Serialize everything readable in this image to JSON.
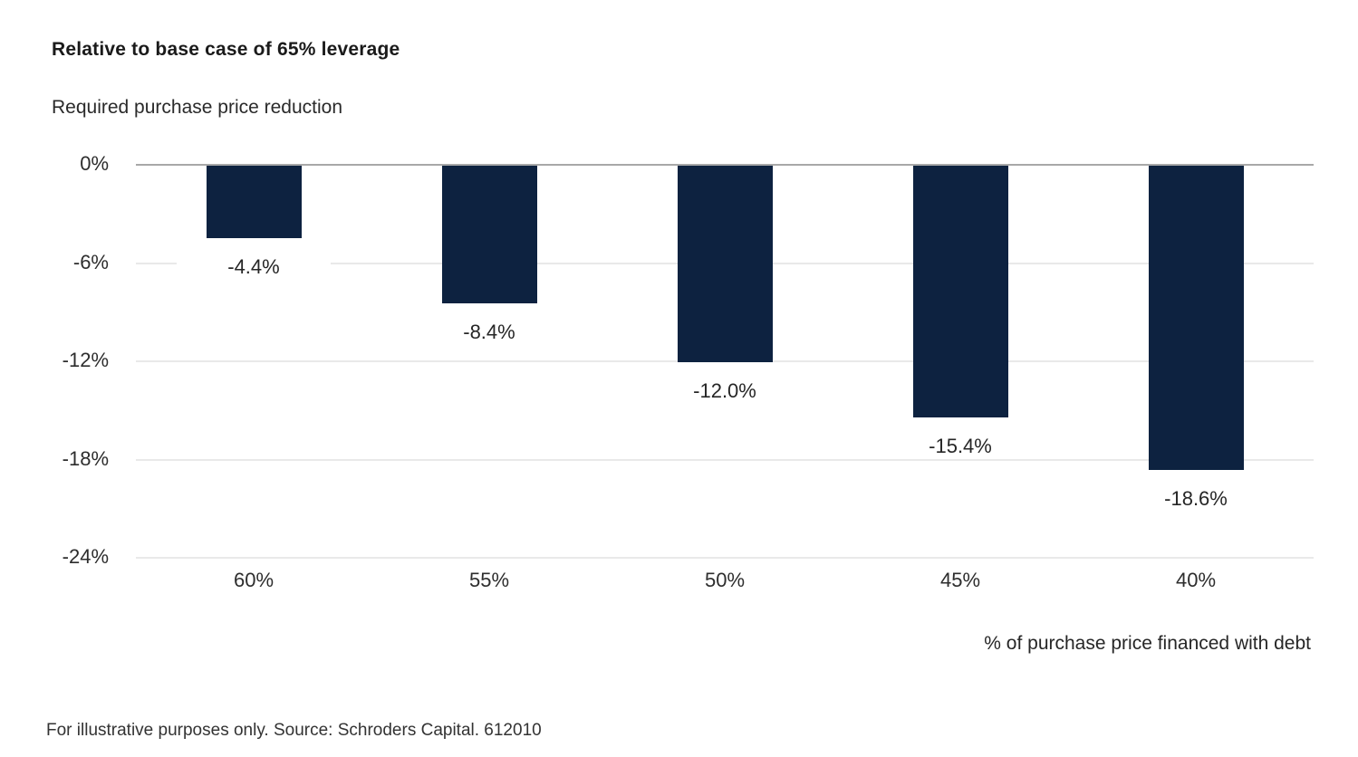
{
  "page": {
    "title": "Relative to base case of 65% leverage",
    "subtitle": "Required purchase price reduction",
    "footnote": "For illustrative purposes only. Source: Schroders Capital. 612010"
  },
  "chart_data": {
    "type": "bar",
    "title": "Relative to base case of 65% leverage",
    "subtitle": "Required purchase price reduction",
    "categories": [
      "60%",
      "55%",
      "50%",
      "45%",
      "40%"
    ],
    "values": [
      -4.4,
      -8.4,
      -12.0,
      -15.4,
      -18.6
    ],
    "bar_labels": [
      "-4.4%",
      "-8.4%",
      "-12.0%",
      "-15.4%",
      "-18.6%"
    ],
    "xlabel": "% of purchase price financed with debt",
    "ylabel": "Required purchase price reduction",
    "ylim": [
      -24,
      0
    ],
    "yticks": [
      0,
      -6,
      -12,
      -18,
      -24
    ],
    "ytick_labels": [
      "0%",
      "-6%",
      "-12%",
      "-18%",
      "-24%"
    ],
    "grid": "horizontal",
    "legend": "none",
    "source_note": "For illustrative purposes only. Source: Schroders Capital. 612010",
    "colors": {
      "bar": "#0d2240",
      "zero_axis_line": "#a8a8a8",
      "gridline": "#e9e9e9",
      "text": "#262626"
    }
  }
}
